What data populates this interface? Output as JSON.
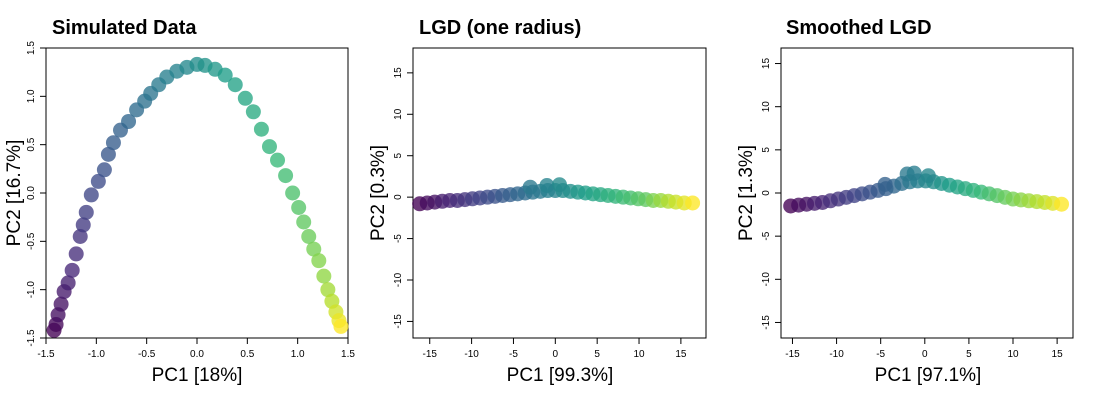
{
  "chart_data": [
    {
      "type": "scatter",
      "title": "Simulated Data",
      "xlabel": "PC1 [18%]",
      "ylabel": "PC2 [16.7%]",
      "xlim": [
        -1.5,
        1.5
      ],
      "ylim": [
        -1.5,
        1.5
      ],
      "xticks": [
        "-1.5",
        "-1.0",
        "-0.5",
        "0.0",
        "0.5",
        "1.0",
        "1.5"
      ],
      "yticks": [
        "-1.5",
        "-1.0",
        "-0.5",
        "0.0",
        "0.5",
        "1.0",
        "1.5"
      ],
      "color_scale": "viridis",
      "points": [
        {
          "x": -1.42,
          "y": -1.42,
          "c": 0.0
        },
        {
          "x": -1.4,
          "y": -1.36,
          "c": 0.02
        },
        {
          "x": -1.38,
          "y": -1.26,
          "c": 0.04
        },
        {
          "x": -1.35,
          "y": -1.15,
          "c": 0.05
        },
        {
          "x": -1.32,
          "y": -1.02,
          "c": 0.07
        },
        {
          "x": -1.28,
          "y": -0.93,
          "c": 0.09
        },
        {
          "x": -1.24,
          "y": -0.8,
          "c": 0.11
        },
        {
          "x": -1.2,
          "y": -0.63,
          "c": 0.13
        },
        {
          "x": -1.16,
          "y": -0.45,
          "c": 0.15
        },
        {
          "x": -1.13,
          "y": -0.33,
          "c": 0.17
        },
        {
          "x": -1.1,
          "y": -0.2,
          "c": 0.19
        },
        {
          "x": -1.05,
          "y": -0.02,
          "c": 0.21
        },
        {
          "x": -0.98,
          "y": 0.12,
          "c": 0.23
        },
        {
          "x": -0.92,
          "y": 0.24,
          "c": 0.25
        },
        {
          "x": -0.88,
          "y": 0.4,
          "c": 0.27
        },
        {
          "x": -0.83,
          "y": 0.52,
          "c": 0.29
        },
        {
          "x": -0.76,
          "y": 0.65,
          "c": 0.31
        },
        {
          "x": -0.68,
          "y": 0.74,
          "c": 0.33
        },
        {
          "x": -0.6,
          "y": 0.86,
          "c": 0.35
        },
        {
          "x": -0.52,
          "y": 0.95,
          "c": 0.37
        },
        {
          "x": -0.46,
          "y": 1.03,
          "c": 0.39
        },
        {
          "x": -0.38,
          "y": 1.12,
          "c": 0.41
        },
        {
          "x": -0.3,
          "y": 1.2,
          "c": 0.43
        },
        {
          "x": -0.2,
          "y": 1.26,
          "c": 0.45
        },
        {
          "x": -0.1,
          "y": 1.3,
          "c": 0.47
        },
        {
          "x": 0.0,
          "y": 1.33,
          "c": 0.49
        },
        {
          "x": 0.08,
          "y": 1.32,
          "c": 0.51
        },
        {
          "x": 0.18,
          "y": 1.28,
          "c": 0.53
        },
        {
          "x": 0.28,
          "y": 1.22,
          "c": 0.55
        },
        {
          "x": 0.38,
          "y": 1.12,
          "c": 0.57
        },
        {
          "x": 0.48,
          "y": 0.98,
          "c": 0.59
        },
        {
          "x": 0.56,
          "y": 0.84,
          "c": 0.61
        },
        {
          "x": 0.64,
          "y": 0.66,
          "c": 0.63
        },
        {
          "x": 0.72,
          "y": 0.48,
          "c": 0.65
        },
        {
          "x": 0.8,
          "y": 0.34,
          "c": 0.67
        },
        {
          "x": 0.88,
          "y": 0.18,
          "c": 0.69
        },
        {
          "x": 0.95,
          "y": 0.0,
          "c": 0.71
        },
        {
          "x": 1.01,
          "y": -0.15,
          "c": 0.73
        },
        {
          "x": 1.06,
          "y": -0.3,
          "c": 0.75
        },
        {
          "x": 1.11,
          "y": -0.45,
          "c": 0.77
        },
        {
          "x": 1.16,
          "y": -0.58,
          "c": 0.79
        },
        {
          "x": 1.21,
          "y": -0.7,
          "c": 0.81
        },
        {
          "x": 1.26,
          "y": -0.86,
          "c": 0.83
        },
        {
          "x": 1.3,
          "y": -1.0,
          "c": 0.86
        },
        {
          "x": 1.34,
          "y": -1.12,
          "c": 0.89
        },
        {
          "x": 1.38,
          "y": -1.23,
          "c": 0.93
        },
        {
          "x": 1.41,
          "y": -1.32,
          "c": 0.97
        },
        {
          "x": 1.43,
          "y": -1.38,
          "c": 1.0
        }
      ]
    },
    {
      "type": "scatter",
      "title": "LGD (one radius)",
      "xlabel": "PC1 [99.3%]",
      "ylabel": "PC2 [0.3%]",
      "xlim": [
        -17,
        18
      ],
      "ylim": [
        -17,
        18
      ],
      "xticks": [
        "-15",
        "-10",
        "-5",
        "0",
        "5",
        "10",
        "15"
      ],
      "yticks": [
        "-15",
        "-10",
        "-5",
        "0",
        "5",
        "10",
        "15"
      ],
      "color_scale": "viridis",
      "points": [
        {
          "x": -16.2,
          "y": -0.8,
          "c": 0.0
        },
        {
          "x": -15.3,
          "y": -0.7,
          "c": 0.03
        },
        {
          "x": -14.4,
          "y": -0.6,
          "c": 0.05
        },
        {
          "x": -13.5,
          "y": -0.5,
          "c": 0.08
        },
        {
          "x": -12.6,
          "y": -0.4,
          "c": 0.1
        },
        {
          "x": -11.7,
          "y": -0.4,
          "c": 0.13
        },
        {
          "x": -10.8,
          "y": -0.3,
          "c": 0.15
        },
        {
          "x": -9.9,
          "y": -0.2,
          "c": 0.18
        },
        {
          "x": -9.0,
          "y": -0.1,
          "c": 0.2
        },
        {
          "x": -8.1,
          "y": 0.0,
          "c": 0.23
        },
        {
          "x": -7.2,
          "y": 0.1,
          "c": 0.25
        },
        {
          "x": -6.3,
          "y": 0.2,
          "c": 0.28
        },
        {
          "x": -5.4,
          "y": 0.3,
          "c": 0.3
        },
        {
          "x": -4.5,
          "y": 0.4,
          "c": 0.33
        },
        {
          "x": -3.6,
          "y": 0.5,
          "c": 0.35
        },
        {
          "x": -2.7,
          "y": 0.6,
          "c": 0.38
        },
        {
          "x": -1.8,
          "y": 0.7,
          "c": 0.4
        },
        {
          "x": -0.9,
          "y": 0.8,
          "c": 0.43
        },
        {
          "x": 0.0,
          "y": 0.8,
          "c": 0.45
        },
        {
          "x": 0.9,
          "y": 0.8,
          "c": 0.48
        },
        {
          "x": 1.8,
          "y": 0.7,
          "c": 0.5
        },
        {
          "x": 2.7,
          "y": 0.6,
          "c": 0.53
        },
        {
          "x": 3.6,
          "y": 0.5,
          "c": 0.55
        },
        {
          "x": 4.5,
          "y": 0.4,
          "c": 0.58
        },
        {
          "x": 5.4,
          "y": 0.3,
          "c": 0.6
        },
        {
          "x": 6.3,
          "y": 0.2,
          "c": 0.63
        },
        {
          "x": 7.2,
          "y": 0.1,
          "c": 0.65
        },
        {
          "x": 8.1,
          "y": 0.0,
          "c": 0.68
        },
        {
          "x": 9.0,
          "y": -0.1,
          "c": 0.7
        },
        {
          "x": 9.9,
          "y": -0.2,
          "c": 0.73
        },
        {
          "x": 10.8,
          "y": -0.3,
          "c": 0.75
        },
        {
          "x": 11.7,
          "y": -0.4,
          "c": 0.8
        },
        {
          "x": 12.6,
          "y": -0.4,
          "c": 0.84
        },
        {
          "x": 13.5,
          "y": -0.5,
          "c": 0.88
        },
        {
          "x": 14.4,
          "y": -0.6,
          "c": 0.92
        },
        {
          "x": 15.4,
          "y": -0.7,
          "c": 0.96
        },
        {
          "x": 16.4,
          "y": -0.7,
          "c": 1.0
        },
        {
          "x": -3.0,
          "y": 1.2,
          "c": 0.4
        },
        {
          "x": -1.0,
          "y": 1.4,
          "c": 0.45
        },
        {
          "x": 0.5,
          "y": 1.5,
          "c": 0.48
        }
      ]
    },
    {
      "type": "scatter",
      "title": "Smoothed LGD",
      "xlabel": "PC1 [97.1%]",
      "ylabel": "PC2 [1.3%]",
      "xlim": [
        -16.3,
        16.8
      ],
      "ylim": [
        -16.8,
        16.8
      ],
      "xticks": [
        "-15",
        "-10",
        "-5",
        "0",
        "5",
        "10",
        "15"
      ],
      "yticks": [
        "-15",
        "-10",
        "-5",
        "0",
        "5",
        "10",
        "15"
      ],
      "color_scale": "viridis",
      "points": [
        {
          "x": -15.2,
          "y": -1.5,
          "c": 0.0
        },
        {
          "x": -14.3,
          "y": -1.4,
          "c": 0.03
        },
        {
          "x": -13.4,
          "y": -1.3,
          "c": 0.05
        },
        {
          "x": -12.5,
          "y": -1.2,
          "c": 0.08
        },
        {
          "x": -11.6,
          "y": -1.1,
          "c": 0.1
        },
        {
          "x": -10.7,
          "y": -0.9,
          "c": 0.13
        },
        {
          "x": -9.8,
          "y": -0.7,
          "c": 0.15
        },
        {
          "x": -8.9,
          "y": -0.5,
          "c": 0.18
        },
        {
          "x": -8.0,
          "y": -0.3,
          "c": 0.2
        },
        {
          "x": -7.1,
          "y": -0.1,
          "c": 0.23
        },
        {
          "x": -6.2,
          "y": 0.1,
          "c": 0.25
        },
        {
          "x": -5.3,
          "y": 0.3,
          "c": 0.28
        },
        {
          "x": -4.4,
          "y": 0.5,
          "c": 0.3
        },
        {
          "x": -3.5,
          "y": 0.8,
          "c": 0.33
        },
        {
          "x": -2.6,
          "y": 1.1,
          "c": 0.36
        },
        {
          "x": -1.7,
          "y": 1.3,
          "c": 0.4
        },
        {
          "x": -0.8,
          "y": 1.4,
          "c": 0.43
        },
        {
          "x": 0.1,
          "y": 1.4,
          "c": 0.46
        },
        {
          "x": 1.0,
          "y": 1.3,
          "c": 0.49
        },
        {
          "x": 1.9,
          "y": 1.1,
          "c": 0.52
        },
        {
          "x": 2.8,
          "y": 0.9,
          "c": 0.55
        },
        {
          "x": 3.7,
          "y": 0.7,
          "c": 0.58
        },
        {
          "x": 4.6,
          "y": 0.5,
          "c": 0.61
        },
        {
          "x": 5.5,
          "y": 0.3,
          "c": 0.64
        },
        {
          "x": 6.4,
          "y": 0.1,
          "c": 0.67
        },
        {
          "x": 7.3,
          "y": -0.1,
          "c": 0.7
        },
        {
          "x": 8.2,
          "y": -0.3,
          "c": 0.73
        },
        {
          "x": 9.1,
          "y": -0.5,
          "c": 0.76
        },
        {
          "x": 10.0,
          "y": -0.7,
          "c": 0.79
        },
        {
          "x": 10.9,
          "y": -0.8,
          "c": 0.82
        },
        {
          "x": 11.8,
          "y": -0.9,
          "c": 0.85
        },
        {
          "x": 12.7,
          "y": -1.0,
          "c": 0.88
        },
        {
          "x": 13.6,
          "y": -1.1,
          "c": 0.91
        },
        {
          "x": 14.5,
          "y": -1.2,
          "c": 0.95
        },
        {
          "x": 15.5,
          "y": -1.3,
          "c": 1.0
        },
        {
          "x": -2.0,
          "y": 2.2,
          "c": 0.4
        },
        {
          "x": -1.2,
          "y": 2.3,
          "c": 0.42
        },
        {
          "x": 0.4,
          "y": 2.0,
          "c": 0.46
        },
        {
          "x": -4.5,
          "y": 1.0,
          "c": 0.31
        }
      ]
    }
  ]
}
